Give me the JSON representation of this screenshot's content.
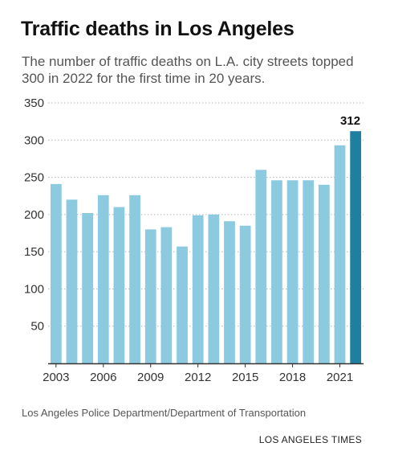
{
  "header": {
    "title": "Traffic deaths in Los Angeles",
    "subtitle": "The number of traffic deaths on L.A. city streets topped 300 in 2022 for the first time in 20 years."
  },
  "footer": {
    "source": "Los Angeles Police Department/Department of Transportation",
    "credit": "LOS ANGELES TIMES"
  },
  "colors": {
    "bar": "#8ccae0",
    "highlight": "#1e7fa0",
    "grid": "#b5b5b5",
    "axis": "#333333"
  },
  "chart_data": {
    "type": "bar",
    "categories": [
      "2003",
      "2004",
      "2005",
      "2006",
      "2007",
      "2008",
      "2009",
      "2010",
      "2011",
      "2012",
      "2013",
      "2014",
      "2015",
      "2016",
      "2017",
      "2018",
      "2019",
      "2020",
      "2021",
      "2022"
    ],
    "values": [
      241,
      220,
      202,
      226,
      210,
      226,
      180,
      183,
      157,
      199,
      200,
      191,
      185,
      260,
      246,
      246,
      246,
      240,
      293,
      312
    ],
    "highlight_category": "2022",
    "value_label": "312",
    "yticks": [
      50,
      100,
      150,
      200,
      250,
      300,
      350
    ],
    "xtick_labels": [
      "2003",
      "2006",
      "2009",
      "2012",
      "2015",
      "2018",
      "2021"
    ],
    "ylim": [
      0,
      350
    ],
    "grid": true,
    "xlabel": "",
    "ylabel": ""
  }
}
